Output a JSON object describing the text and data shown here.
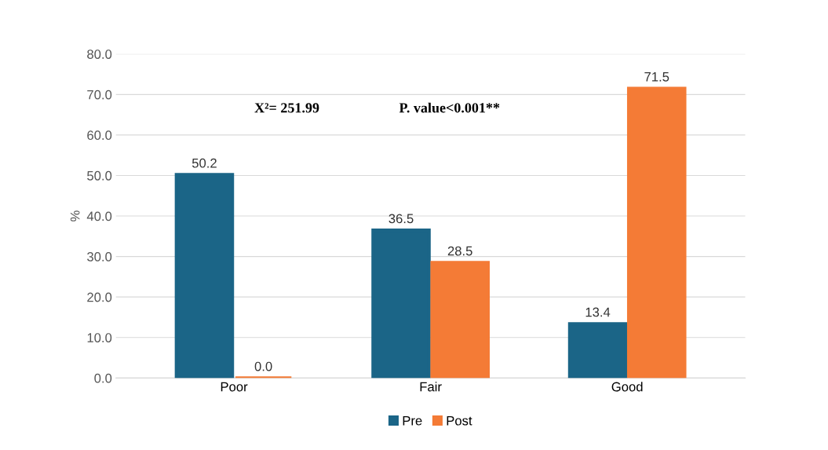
{
  "chart_data": {
    "type": "bar",
    "categories": [
      "Poor",
      "Fair",
      "Good"
    ],
    "series": [
      {
        "name": "Pre",
        "color": "#1b6587",
        "values": [
          50.2,
          36.5,
          13.4
        ],
        "value_labels": [
          "50.2",
          "36.5",
          "13.4"
        ]
      },
      {
        "name": "Post",
        "color": "#f47b36",
        "values": [
          0.0,
          28.5,
          71.5
        ],
        "value_labels": [
          "0.0",
          "28.5",
          "71.5"
        ]
      }
    ],
    "ylabel": "%",
    "ylim": [
      0,
      80
    ],
    "yticks": [
      {
        "value": 0,
        "label": "0.0"
      },
      {
        "value": 10,
        "label": "10.0"
      },
      {
        "value": 20,
        "label": "20.0"
      },
      {
        "value": 30,
        "label": "30.0"
      },
      {
        "value": 40,
        "label": "40.0"
      },
      {
        "value": 50,
        "label": "50.0"
      },
      {
        "value": 60,
        "label": "60.0"
      },
      {
        "value": 70,
        "label": "70.0"
      },
      {
        "value": 80,
        "label": "80.0"
      }
    ],
    "annotations": [
      "X²= 251.99",
      "P. value<0.001**"
    ],
    "grid": "y",
    "legend": "bottom"
  }
}
